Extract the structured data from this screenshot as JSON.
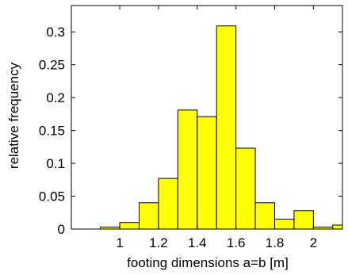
{
  "chart_data": {
    "type": "bar",
    "title": "",
    "xlabel": "footing dimensions a=b [m]",
    "ylabel": "relative frequency",
    "xlim": [
      0.75,
      2.15
    ],
    "ylim": [
      0,
      0.34
    ],
    "bin_width": 0.1,
    "bin_centers": [
      0.85,
      0.95,
      1.05,
      1.15,
      1.25,
      1.35,
      1.45,
      1.55,
      1.65,
      1.75,
      1.85,
      1.95,
      2.05,
      2.15
    ],
    "values": [
      0.0,
      0.003,
      0.01,
      0.04,
      0.077,
      0.181,
      0.171,
      0.309,
      0.123,
      0.04,
      0.015,
      0.028,
      0.003,
      0.006
    ],
    "x_ticks": [
      {
        "value": 1.0,
        "label": "1"
      },
      {
        "value": 1.2,
        "label": "1.2"
      },
      {
        "value": 1.4,
        "label": "1.4"
      },
      {
        "value": 1.6,
        "label": "1.6"
      },
      {
        "value": 1.8,
        "label": "1.8"
      },
      {
        "value": 2.0,
        "label": "2"
      }
    ],
    "y_ticks": [
      {
        "value": 0,
        "label": "0"
      },
      {
        "value": 0.05,
        "label": "0.05"
      },
      {
        "value": 0.1,
        "label": "0.1"
      },
      {
        "value": 0.15,
        "label": "0.15"
      },
      {
        "value": 0.2,
        "label": "0.2"
      },
      {
        "value": 0.25,
        "label": "0.25"
      },
      {
        "value": 0.3,
        "label": "0.3"
      }
    ],
    "bar_color": "#ffff00",
    "edge_color": "#000000",
    "grid": false,
    "legend": "none"
  }
}
